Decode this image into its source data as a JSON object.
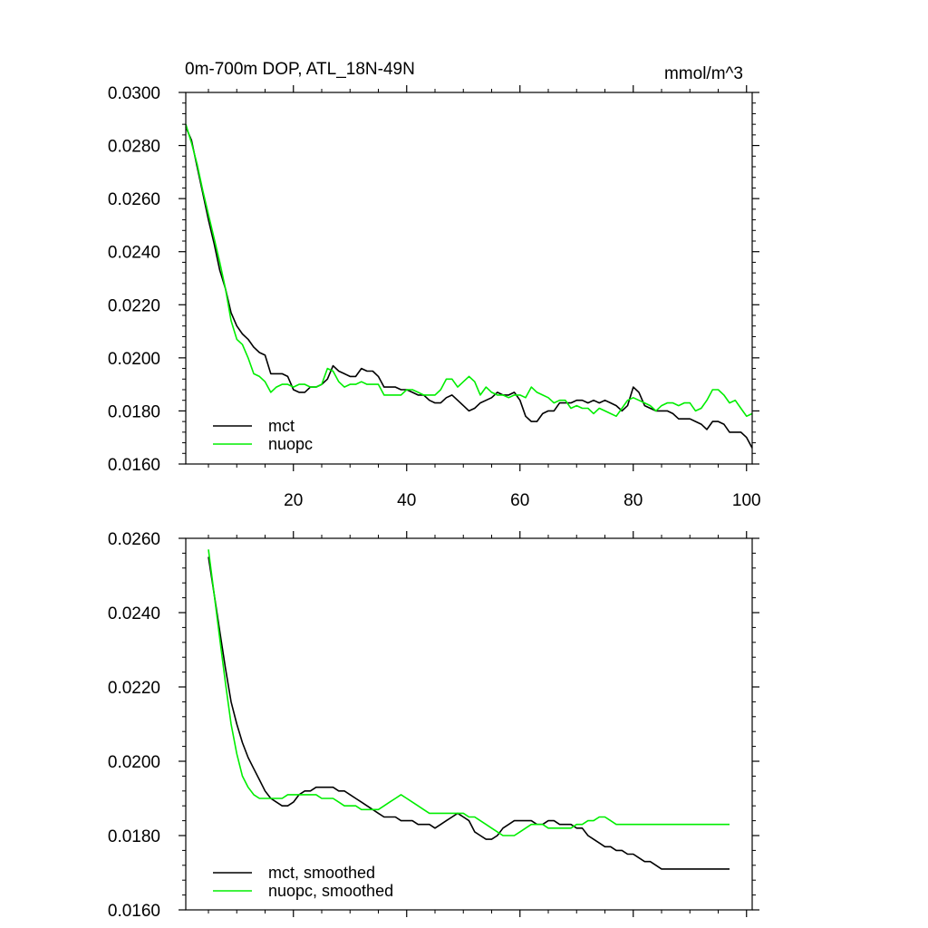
{
  "colors": {
    "mct": "#000000",
    "nuopc": "#00ee00",
    "frame": "#000000",
    "background": "#ffffff"
  },
  "chart_data": [
    {
      "type": "line",
      "title": "0m-700m DOP, ATL_18N-49N",
      "units": "mmol/m^3",
      "xlabel": "",
      "ylabel": "",
      "xlim": [
        1,
        101
      ],
      "ylim": [
        0.016,
        0.03
      ],
      "xticks": [
        20,
        40,
        60,
        80,
        100
      ],
      "xtick_labels": [
        "20",
        "40",
        "60",
        "80",
        "100"
      ],
      "yticks": [
        0.016,
        0.018,
        0.02,
        0.022,
        0.024,
        0.026,
        0.028,
        0.03
      ],
      "ytick_labels": [
        "0.0160",
        "0.0180",
        "0.0200",
        "0.0220",
        "0.0240",
        "0.0260",
        "0.0280",
        "0.0300"
      ],
      "grid": false,
      "legend_position": "bottom-left",
      "x": [
        1,
        2,
        3,
        4,
        5,
        6,
        7,
        8,
        9,
        10,
        11,
        12,
        13,
        14,
        15,
        16,
        17,
        18,
        19,
        20,
        21,
        22,
        23,
        24,
        25,
        26,
        27,
        28,
        29,
        30,
        31,
        32,
        33,
        34,
        35,
        36,
        37,
        38,
        39,
        40,
        41,
        42,
        43,
        44,
        45,
        46,
        47,
        48,
        49,
        50,
        51,
        52,
        53,
        54,
        55,
        56,
        57,
        58,
        59,
        60,
        61,
        62,
        63,
        64,
        65,
        66,
        67,
        68,
        69,
        70,
        71,
        72,
        73,
        74,
        75,
        76,
        77,
        78,
        79,
        80,
        81,
        82,
        83,
        84,
        85,
        86,
        87,
        88,
        89,
        90,
        91,
        92,
        93,
        94,
        95,
        96,
        97,
        98,
        99,
        100,
        101
      ],
      "series": [
        {
          "name": "mct",
          "color": "#000000",
          "values": [
            0.0287,
            0.0282,
            0.0272,
            0.0262,
            0.0252,
            0.0243,
            0.0233,
            0.0226,
            0.0217,
            0.0212,
            0.0209,
            0.0207,
            0.0204,
            0.0202,
            0.0201,
            0.0194,
            0.0194,
            0.0194,
            0.0193,
            0.0188,
            0.0187,
            0.0187,
            0.0189,
            0.0189,
            0.019,
            0.0192,
            0.0197,
            0.0195,
            0.0194,
            0.0193,
            0.0193,
            0.0196,
            0.0195,
            0.0195,
            0.0193,
            0.0189,
            0.0189,
            0.0189,
            0.0188,
            0.0188,
            0.0187,
            0.0186,
            0.0186,
            0.0184,
            0.0183,
            0.0183,
            0.0185,
            0.0186,
            0.0184,
            0.0182,
            0.018,
            0.0181,
            0.0183,
            0.0184,
            0.0185,
            0.0187,
            0.0186,
            0.0186,
            0.0187,
            0.0184,
            0.0178,
            0.0176,
            0.0176,
            0.0179,
            0.018,
            0.018,
            0.0183,
            0.0183,
            0.0183,
            0.0184,
            0.0184,
            0.0183,
            0.0184,
            0.0183,
            0.0184,
            0.0183,
            0.0182,
            0.018,
            0.0182,
            0.0189,
            0.0187,
            0.0182,
            0.0181,
            0.018,
            0.018,
            0.018,
            0.0179,
            0.0177,
            0.0177,
            0.0177,
            0.0176,
            0.0175,
            0.0173,
            0.0176,
            0.0176,
            0.0175,
            0.0172,
            0.0172,
            0.0172,
            0.017,
            0.0166
          ]
        },
        {
          "name": "nuopc",
          "color": "#00ee00",
          "values": [
            0.0288,
            0.0281,
            0.0273,
            0.0263,
            0.0254,
            0.0245,
            0.0236,
            0.0226,
            0.0214,
            0.0207,
            0.0205,
            0.02,
            0.0194,
            0.0193,
            0.0191,
            0.0187,
            0.0189,
            0.019,
            0.019,
            0.0189,
            0.019,
            0.019,
            0.0189,
            0.0189,
            0.019,
            0.0196,
            0.0195,
            0.0191,
            0.0189,
            0.019,
            0.019,
            0.0191,
            0.019,
            0.019,
            0.019,
            0.0186,
            0.0186,
            0.0186,
            0.0186,
            0.0188,
            0.0188,
            0.0187,
            0.0186,
            0.0186,
            0.0186,
            0.0188,
            0.0192,
            0.0192,
            0.0189,
            0.0191,
            0.0193,
            0.0191,
            0.0186,
            0.0189,
            0.0187,
            0.0186,
            0.0186,
            0.0185,
            0.0186,
            0.0186,
            0.0185,
            0.0189,
            0.0187,
            0.0186,
            0.0185,
            0.0183,
            0.0184,
            0.0184,
            0.0181,
            0.0182,
            0.0181,
            0.0181,
            0.0179,
            0.0181,
            0.018,
            0.0179,
            0.0178,
            0.0181,
            0.0184,
            0.0185,
            0.0184,
            0.0183,
            0.0182,
            0.018,
            0.0182,
            0.0183,
            0.0183,
            0.0182,
            0.0183,
            0.0183,
            0.018,
            0.0181,
            0.0184,
            0.0188,
            0.0188,
            0.0186,
            0.0183,
            0.0184,
            0.0181,
            0.0178,
            0.0179
          ]
        }
      ]
    },
    {
      "type": "line",
      "title": "",
      "xlabel": "",
      "ylabel": "",
      "xlim": [
        1,
        101
      ],
      "ylim": [
        0.016,
        0.026
      ],
      "xticks": [
        20,
        40,
        60,
        80,
        100
      ],
      "xtick_labels": [],
      "yticks": [
        0.016,
        0.018,
        0.02,
        0.022,
        0.024,
        0.026
      ],
      "ytick_labels": [
        "0.0160",
        "0.0180",
        "0.0200",
        "0.0220",
        "0.0240",
        "0.0260"
      ],
      "grid": false,
      "legend_position": "bottom-left",
      "x": [
        5,
        6,
        7,
        8,
        9,
        10,
        11,
        12,
        13,
        14,
        15,
        16,
        17,
        18,
        19,
        20,
        21,
        22,
        23,
        24,
        25,
        26,
        27,
        28,
        29,
        30,
        31,
        32,
        33,
        34,
        35,
        36,
        37,
        38,
        39,
        40,
        41,
        42,
        43,
        44,
        45,
        46,
        47,
        48,
        49,
        50,
        51,
        52,
        53,
        54,
        55,
        56,
        57,
        58,
        59,
        60,
        61,
        62,
        63,
        64,
        65,
        66,
        67,
        68,
        69,
        70,
        71,
        72,
        73,
        74,
        75,
        76,
        77,
        78,
        79,
        80,
        81,
        82,
        83,
        84,
        85,
        86,
        87,
        88,
        89,
        90,
        91,
        92,
        93,
        94,
        95,
        96,
        97
      ],
      "series": [
        {
          "name": "mct, smoothed",
          "color": "#000000",
          "values": [
            0.0255,
            0.0245,
            0.0235,
            0.0225,
            0.0216,
            0.021,
            0.0205,
            0.0201,
            0.0198,
            0.0195,
            0.0192,
            0.019,
            0.0189,
            0.0188,
            0.0188,
            0.0189,
            0.0191,
            0.0192,
            0.0192,
            0.0193,
            0.0193,
            0.0193,
            0.0193,
            0.0192,
            0.0192,
            0.0191,
            0.019,
            0.0189,
            0.0188,
            0.0187,
            0.0186,
            0.0185,
            0.0185,
            0.0185,
            0.0184,
            0.0184,
            0.0184,
            0.0183,
            0.0183,
            0.0183,
            0.0182,
            0.0183,
            0.0184,
            0.0185,
            0.0186,
            0.0185,
            0.0184,
            0.0181,
            0.018,
            0.0179,
            0.0179,
            0.018,
            0.0182,
            0.0183,
            0.0184,
            0.0184,
            0.0184,
            0.0184,
            0.0183,
            0.0183,
            0.0184,
            0.0184,
            0.0183,
            0.0183,
            0.0183,
            0.0182,
            0.0182,
            0.018,
            0.0179,
            0.0178,
            0.0177,
            0.0177,
            0.0176,
            0.0176,
            0.0175,
            0.0175,
            0.0174,
            0.0173,
            0.0173,
            0.0172,
            0.0171,
            0.0171,
            0.0171,
            0.0171,
            0.0171,
            0.0171,
            0.0171,
            0.0171,
            0.0171,
            0.0171,
            0.0171,
            0.0171,
            0.0171
          ]
        },
        {
          "name": "nuopc, smoothed",
          "color": "#00ee00",
          "values": [
            0.0257,
            0.0245,
            0.0233,
            0.0221,
            0.021,
            0.0202,
            0.0196,
            0.0193,
            0.0191,
            0.019,
            0.019,
            0.019,
            0.019,
            0.019,
            0.0191,
            0.0191,
            0.0191,
            0.0191,
            0.0191,
            0.0191,
            0.019,
            0.019,
            0.019,
            0.0189,
            0.0188,
            0.0188,
            0.0188,
            0.0187,
            0.0187,
            0.0187,
            0.0187,
            0.0188,
            0.0189,
            0.019,
            0.0191,
            0.019,
            0.0189,
            0.0188,
            0.0187,
            0.0186,
            0.0186,
            0.0186,
            0.0186,
            0.0186,
            0.0186,
            0.0186,
            0.0185,
            0.0185,
            0.0184,
            0.0183,
            0.0182,
            0.0181,
            0.018,
            0.018,
            0.018,
            0.0181,
            0.0182,
            0.0183,
            0.0183,
            0.0183,
            0.0182,
            0.0182,
            0.0182,
            0.0182,
            0.0182,
            0.0183,
            0.0183,
            0.0184,
            0.0184,
            0.0185,
            0.0185,
            0.0184,
            0.0183,
            0.0183,
            0.0183,
            0.0183,
            0.0183,
            0.0183,
            0.0183,
            0.0183,
            0.0183,
            0.0183,
            0.0183,
            0.0183,
            0.0183,
            0.0183,
            0.0183,
            0.0183,
            0.0183,
            0.0183,
            0.0183,
            0.0183,
            0.0183
          ]
        }
      ]
    }
  ]
}
